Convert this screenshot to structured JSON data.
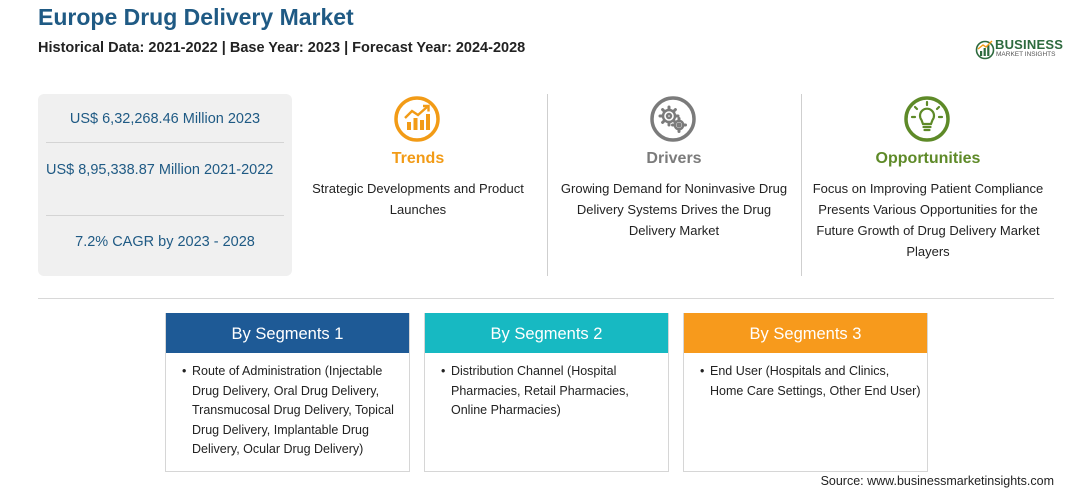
{
  "header": {
    "title": "Europe Drug Delivery Market",
    "subtitle": "Historical Data: 2021-2022 | Base Year: 2023 | Forecast Year: 2024-2028"
  },
  "logo": {
    "brand": "BUSINESS",
    "sub": "MARKET INSIGHTS",
    "color": "#2d6a3e"
  },
  "stats": {
    "market_size_2023": "US$ 6,32,268.46 Million 2023",
    "market_size_historical": "US$ 8,95,338.87 Million 2021-2022",
    "cagr": "7.2% CAGR by 2023 - 2028"
  },
  "insights": [
    {
      "title": "Trends",
      "icon": "growth-chart-icon",
      "color": "#f29b16",
      "text": "Strategic Developments and Product Launches"
    },
    {
      "title": "Drivers",
      "icon": "gears-icon",
      "color": "#7b7b7b",
      "text": "Growing Demand for Noninvasive Drug Delivery Systems Drives the Drug Delivery Market"
    },
    {
      "title": "Opportunities",
      "icon": "lightbulb-icon",
      "color": "#5e8a28",
      "text": "Focus on Improving Patient Compliance Presents Various Opportunities for the Future Growth of Drug Delivery Market Players"
    }
  ],
  "segments": [
    {
      "title": "By Segments 1",
      "color": "#1e5a96",
      "text": "Route of Administration (Injectable Drug Delivery, Oral Drug Delivery, Transmucosal Drug Delivery, Topical Drug Delivery, Implantable Drug Delivery, Ocular Drug Delivery)"
    },
    {
      "title": "By Segments 2",
      "color": "#17b9c2",
      "text": "Distribution Channel (Hospital Pharmacies, Retail Pharmacies, Online Pharmacies)"
    },
    {
      "title": "By Segments 3",
      "color": "#f79a1c",
      "text": "End User (Hospitals and Clinics, Home Care Settings, Other End User)"
    }
  ],
  "footer": {
    "source": "Source: www.businessmarketinsights.com"
  }
}
